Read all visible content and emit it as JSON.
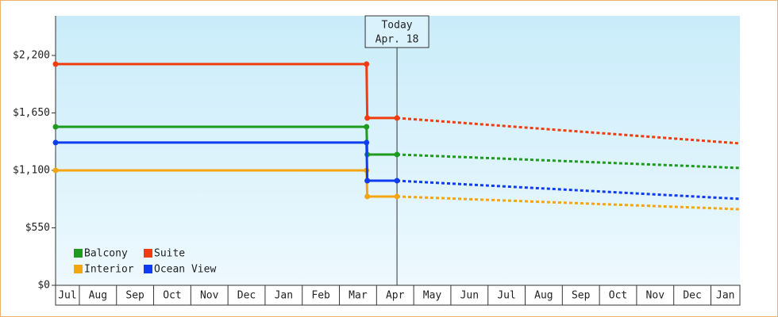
{
  "chart_data": {
    "type": "line",
    "ylim": [
      0,
      2579
    ],
    "yticks": [
      {
        "value": 0,
        "label": "$0"
      },
      {
        "value": 550,
        "label": "$550"
      },
      {
        "value": 1100,
        "label": "$1,100"
      },
      {
        "value": 1650,
        "label": "$1,650"
      },
      {
        "value": 2200,
        "label": "$2,200"
      }
    ],
    "xlim": [
      0.36,
      18.78
    ],
    "xticks": [
      {
        "value": 0,
        "label": "Jul"
      },
      {
        "value": 1,
        "label": "Aug"
      },
      {
        "value": 2,
        "label": "Sep"
      },
      {
        "value": 3,
        "label": "Oct"
      },
      {
        "value": 4,
        "label": "Nov"
      },
      {
        "value": 5,
        "label": "Dec"
      },
      {
        "value": 6,
        "label": "Jan"
      },
      {
        "value": 7,
        "label": "Feb"
      },
      {
        "value": 8,
        "label": "Mar"
      },
      {
        "value": 9,
        "label": "Apr"
      },
      {
        "value": 10,
        "label": "May"
      },
      {
        "value": 11,
        "label": "Jun"
      },
      {
        "value": 12,
        "label": "Jul"
      },
      {
        "value": 13,
        "label": "Aug"
      },
      {
        "value": 14,
        "label": "Sep"
      },
      {
        "value": 15,
        "label": "Oct"
      },
      {
        "value": 16,
        "label": "Nov"
      },
      {
        "value": 17,
        "label": "Dec"
      },
      {
        "value": 18,
        "label": "Jan"
      }
    ],
    "today": {
      "x": 9.55,
      "label": "Today",
      "date": "Apr. 18"
    },
    "series": [
      {
        "name": "Balcony",
        "color": "#1e9a1e",
        "x": [
          0.36,
          8.73,
          8.75,
          9.55
        ],
        "values": [
          1517,
          1517,
          1252,
          1252
        ],
        "forecast": {
          "x": [
            9.55,
            18.78
          ],
          "values": [
            1252,
            1123
          ]
        }
      },
      {
        "name": "Suite",
        "color": "#f03c0f",
        "x": [
          0.36,
          8.73,
          8.75,
          9.55
        ],
        "values": [
          2117,
          2117,
          1601,
          1601
        ],
        "forecast": {
          "x": [
            9.55,
            18.78
          ],
          "values": [
            1601,
            1358
          ]
        }
      },
      {
        "name": "Interior",
        "color": "#f5a50f",
        "x": [
          0.36,
          8.73,
          8.75,
          9.55
        ],
        "values": [
          1100,
          1100,
          850,
          850
        ],
        "forecast": {
          "x": [
            9.55,
            18.78
          ],
          "values": [
            850,
            728
          ]
        }
      },
      {
        "name": "Ocean View",
        "color": "#0f3cf0",
        "x": [
          0.36,
          8.73,
          8.75,
          9.55
        ],
        "values": [
          1366,
          1366,
          1001,
          1001
        ],
        "forecast": {
          "x": [
            9.55,
            18.78
          ],
          "values": [
            1001,
            827
          ]
        }
      }
    ]
  }
}
